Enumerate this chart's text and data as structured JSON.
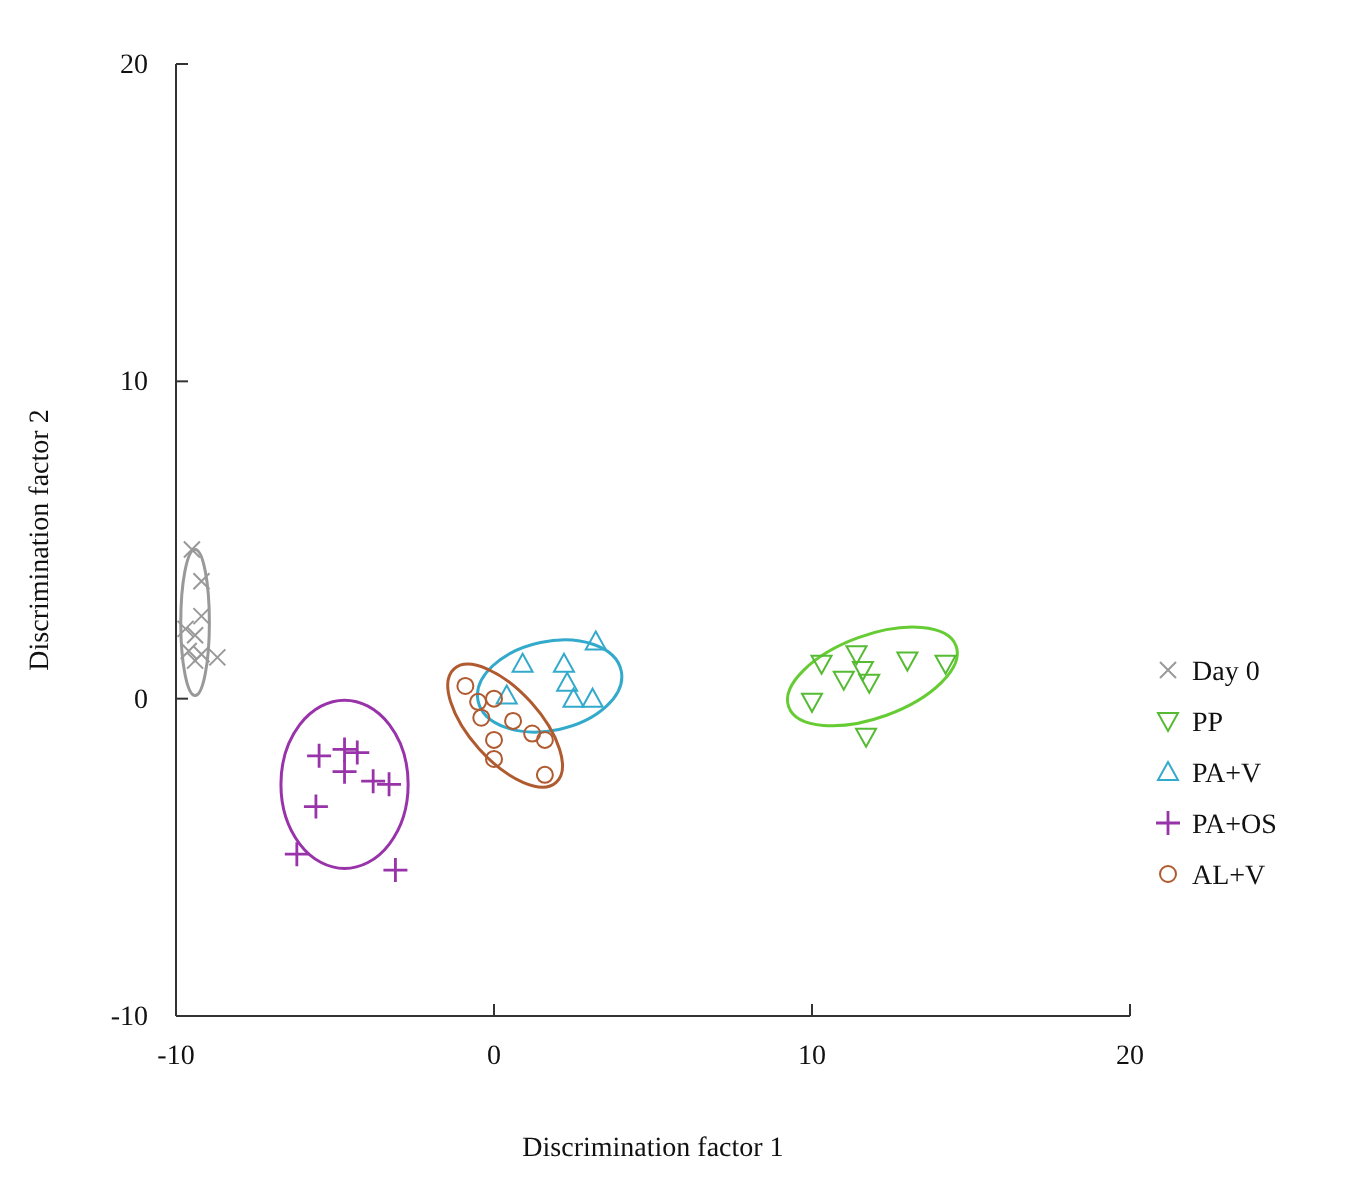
{
  "chart_data": {
    "type": "scatter",
    "xlabel": "Discrimination factor 1",
    "ylabel": "Discrimination factor 2",
    "xlim": [
      -10,
      20
    ],
    "ylim": [
      -10,
      20
    ],
    "xticks": [
      -10,
      0,
      10,
      20
    ],
    "yticks": [
      -10,
      0,
      10,
      20
    ],
    "grid": false,
    "legend": "right",
    "series": [
      {
        "name": "Day 0",
        "color": "#999999",
        "marker": "x",
        "x": [
          -9.5,
          -9.2,
          -9.2,
          -9.7,
          -9.4,
          -9.6,
          -9.2,
          -8.7,
          -9.4
        ],
        "values": [
          4.7,
          3.7,
          2.6,
          2.2,
          2.0,
          1.5,
          1.4,
          1.3,
          1.2
        ]
      },
      {
        "name": "PP",
        "color": "#55bb33",
        "marker": "triangle-down",
        "x": [
          10.3,
          11.0,
          11.4,
          11.6,
          11.8,
          10.0,
          13.0,
          14.2,
          11.7
        ],
        "values": [
          1.1,
          0.6,
          1.4,
          0.9,
          0.5,
          -0.1,
          1.2,
          1.1,
          -1.2
        ]
      },
      {
        "name": "PA+V",
        "color": "#33aacc",
        "marker": "triangle",
        "x": [
          3.2,
          2.2,
          2.3,
          2.5,
          3.1,
          0.4,
          0.9
        ],
        "values": [
          1.8,
          1.1,
          0.5,
          0.0,
          0.0,
          0.1,
          1.1
        ]
      },
      {
        "name": "PA+OS",
        "color": "#9933aa",
        "marker": "cross",
        "x": [
          -5.5,
          -4.7,
          -4.3,
          -4.7,
          -3.8,
          -3.3,
          -5.6,
          -6.2,
          -3.1
        ],
        "values": [
          -1.8,
          -1.6,
          -1.7,
          -2.3,
          -2.6,
          -2.7,
          -3.4,
          -4.9,
          -5.4
        ]
      },
      {
        "name": "AL+V",
        "color": "#b05a30",
        "marker": "circle",
        "x": [
          -0.9,
          -0.5,
          0.0,
          -0.4,
          0.6,
          1.2,
          1.6,
          0.0,
          0.0,
          1.6
        ],
        "values": [
          0.4,
          -0.1,
          0.0,
          -0.6,
          -0.7,
          -1.1,
          -1.3,
          -1.3,
          -1.9,
          -2.4
        ]
      }
    ]
  }
}
